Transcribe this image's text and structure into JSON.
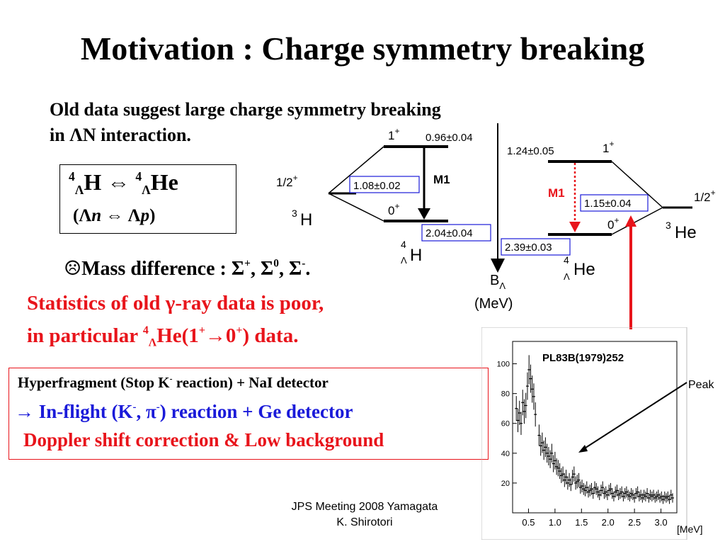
{
  "slide": {
    "title": "Motivation : Charge symmetry breaking",
    "intro": {
      "line1": "Old data suggest large charge symmetry breaking",
      "line2_prefix": "in ",
      "line2_lambda": "Λ",
      "line2_suffix": "N interaction."
    },
    "hypernuclei_box": {
      "h_mass": "4",
      "h_lambda": "Λ",
      "h_symbol": "H",
      "equiv": " ⇔ ",
      "he_mass": "4",
      "he_lambda": "Λ",
      "he_symbol": "He",
      "pair_open": "(",
      "lambda1": "Λ",
      "n": "n",
      "pair_equiv": " ⇔ ",
      "lambda2": "Λ",
      "p": "p",
      "pair_close": ")"
    },
    "mass_difference": {
      "bullet": "☹",
      "label": "Mass difference : ",
      "s1": "Σ",
      "s1_charge": "+",
      "sep1": ", ",
      "s2": "Σ",
      "s2_charge": "0",
      "sep2": ", ",
      "s3": "Σ",
      "s3_charge": "-",
      "end": "."
    },
    "statistics": {
      "line1": "Statistics of old γ-ray data is poor,",
      "line2_prefix": "in particular ",
      "line2_mass": "4",
      "line2_lambda": "Λ",
      "line2_mid": "He(1",
      "line2_sup1": "+",
      "line2_arrow": "→0",
      "line2_sup2": "+",
      "line2_suffix": ") data."
    },
    "method_box": {
      "line1_prefix": "Hyperfragment (Stop K",
      "line1_sup": "-",
      "line1_suffix": " reaction) +  NaI detector",
      "line2_prefix": "→ In-flight (K",
      "line2_sup1": "-",
      "line2_mid": ", π",
      "line2_sup2": "-",
      "line2_suffix": ") reaction + Ge detector",
      "line3": " Doppler shift correction & Low background"
    },
    "footer": {
      "line1": "JPS Meeting 2008 Yamagata",
      "line2": "K. Shirotori"
    }
  },
  "level_diagram": {
    "left": {
      "core_spin": "1/2",
      "core_parity": "+",
      "core_mass": "3",
      "core_symbol": "H",
      "upper_spin": "1",
      "upper_parity": "+",
      "upper_energy": "0.96±0.04",
      "ground_spin": "0",
      "ground_parity": "+",
      "gap_energy": "1.08±0.02",
      "transition": "M1",
      "binding": "2.04±0.04",
      "hyper_mass": "4",
      "hyper_lambda": "Λ",
      "hyper_symbol": "H"
    },
    "right": {
      "upper_energy": "1.24±0.05",
      "upper_spin": "1",
      "upper_parity": "+",
      "transition": "M1",
      "gap_energy": "1.15±0.04",
      "ground_spin": "0",
      "ground_parity": "+",
      "binding": "2.39±0.03",
      "hyper_mass": "4",
      "hyper_lambda": "Λ",
      "hyper_symbol": "He",
      "core_spin": "1/2",
      "core_parity": "+",
      "core_mass": "3",
      "core_symbol": "He"
    },
    "axis_label": "B",
    "axis_sub": "Λ",
    "axis_unit": "(MeV)",
    "colors": {
      "highlight": "#e8141b",
      "box": "#1a1ad9"
    }
  },
  "chart_data": {
    "type": "scatter",
    "title": "PL83B(1979)252",
    "annotation": "Peak",
    "xunit": "[MeV]",
    "xlim": [
      0.2,
      3.3
    ],
    "ylim": [
      0,
      115
    ],
    "xticks": [
      0.5,
      1.0,
      1.5,
      2.0,
      2.5,
      3.0
    ],
    "xtick_labels": [
      "0.5",
      "1.0",
      "1.5",
      "2.0",
      "2.5",
      "3.0"
    ],
    "yticks": [
      20,
      40,
      60,
      80,
      100
    ],
    "ytick_labels": [
      "20",
      "40",
      "60",
      "80",
      "100"
    ],
    "peak_at": [
      1.08,
      30
    ],
    "points": [
      [
        0.27,
        70
      ],
      [
        0.3,
        62
      ],
      [
        0.33,
        67
      ],
      [
        0.36,
        60
      ],
      [
        0.39,
        74
      ],
      [
        0.42,
        68
      ],
      [
        0.45,
        72
      ],
      [
        0.48,
        85
      ],
      [
        0.51,
        96
      ],
      [
        0.54,
        90
      ],
      [
        0.57,
        83
      ],
      [
        0.6,
        78
      ],
      [
        0.63,
        66
      ],
      [
        0.7,
        52
      ],
      [
        0.73,
        45
      ],
      [
        0.76,
        47
      ],
      [
        0.79,
        42
      ],
      [
        0.82,
        44
      ],
      [
        0.85,
        40
      ],
      [
        0.88,
        38
      ],
      [
        0.91,
        36
      ],
      [
        0.94,
        40
      ],
      [
        0.97,
        33
      ],
      [
        1.0,
        35
      ],
      [
        1.03,
        31
      ],
      [
        1.06,
        30
      ],
      [
        1.09,
        28
      ],
      [
        1.12,
        25
      ],
      [
        1.15,
        26
      ],
      [
        1.18,
        22
      ],
      [
        1.21,
        24
      ],
      [
        1.24,
        20
      ],
      [
        1.27,
        22
      ],
      [
        1.3,
        19
      ],
      [
        1.33,
        24
      ],
      [
        1.36,
        26
      ],
      [
        1.39,
        20
      ],
      [
        1.42,
        21
      ],
      [
        1.45,
        22
      ],
      [
        1.48,
        17
      ],
      [
        1.51,
        18
      ],
      [
        1.54,
        16
      ],
      [
        1.57,
        15
      ],
      [
        1.6,
        17
      ],
      [
        1.63,
        14
      ],
      [
        1.66,
        15
      ],
      [
        1.69,
        16
      ],
      [
        1.72,
        13
      ],
      [
        1.75,
        17
      ],
      [
        1.78,
        16
      ],
      [
        1.81,
        14
      ],
      [
        1.84,
        12
      ],
      [
        1.87,
        15
      ],
      [
        1.9,
        17
      ],
      [
        1.93,
        13
      ],
      [
        1.96,
        14
      ],
      [
        1.99,
        12
      ],
      [
        2.02,
        15
      ],
      [
        2.05,
        16
      ],
      [
        2.08,
        13
      ],
      [
        2.11,
        11
      ],
      [
        2.14,
        14
      ],
      [
        2.17,
        15
      ],
      [
        2.2,
        12
      ],
      [
        2.23,
        13
      ],
      [
        2.26,
        14
      ],
      [
        2.29,
        11
      ],
      [
        2.32,
        13
      ],
      [
        2.35,
        14
      ],
      [
        2.38,
        12
      ],
      [
        2.41,
        11
      ],
      [
        2.44,
        13
      ],
      [
        2.47,
        12
      ],
      [
        2.5,
        10
      ],
      [
        2.53,
        13
      ],
      [
        2.56,
        14
      ],
      [
        2.59,
        11
      ],
      [
        2.62,
        12
      ],
      [
        2.65,
        10
      ],
      [
        2.68,
        12
      ],
      [
        2.71,
        11
      ],
      [
        2.74,
        13
      ],
      [
        2.77,
        10
      ],
      [
        2.8,
        12
      ],
      [
        2.83,
        11
      ],
      [
        2.86,
        12
      ],
      [
        2.89,
        10
      ],
      [
        2.92,
        11
      ],
      [
        2.95,
        12
      ],
      [
        2.98,
        10
      ],
      [
        3.01,
        11
      ],
      [
        3.04,
        9
      ],
      [
        3.07,
        11
      ],
      [
        3.1,
        10
      ],
      [
        3.13,
        11
      ],
      [
        3.16,
        9
      ],
      [
        3.19,
        12
      ],
      [
        3.22,
        10
      ]
    ]
  }
}
